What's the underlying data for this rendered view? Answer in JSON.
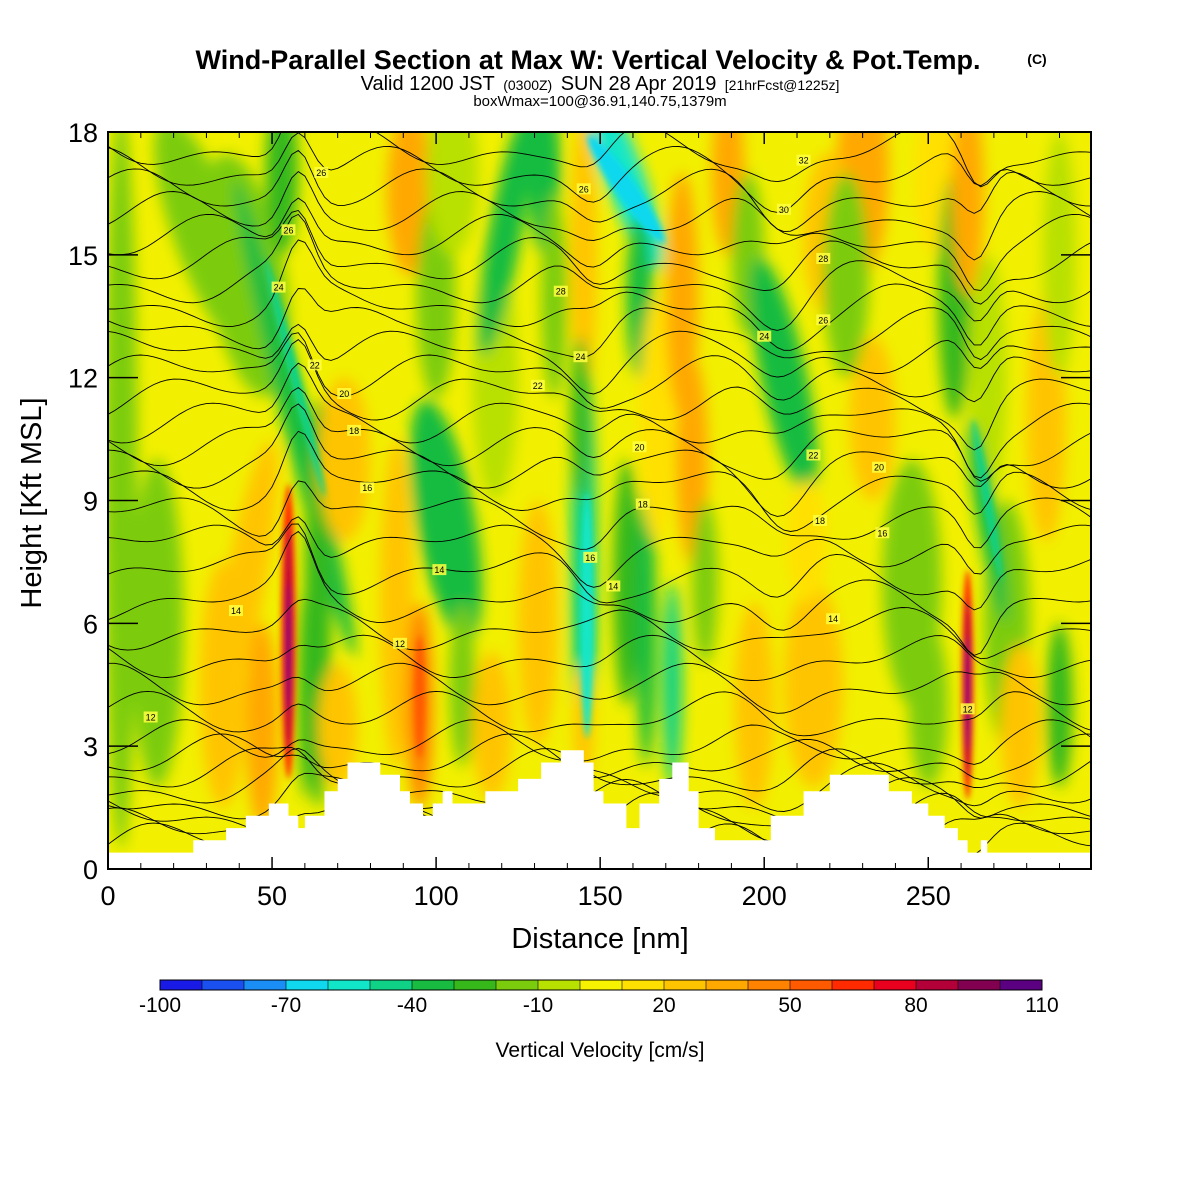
{
  "header": {
    "title_main": "Wind-Parallel Section at Max W: Vertical Velocity & Pot.Temp.",
    "title_copyright": "(C)",
    "valid_prefix": "Valid 1200 JST",
    "valid_utc": "(0300Z)",
    "valid_date": "SUN 28 Apr 2019",
    "valid_fcst": "[21hrFcst@1225z]",
    "box_info": "boxWmax=100@36.91,140.75,1379m"
  },
  "chart_data": {
    "type": "heatmap",
    "title": "Wind-Parallel Section at Max W: Vertical Velocity & Pot.Temp.",
    "xlabel": "Distance [nm]",
    "ylabel": "Height [Kft MSL]",
    "xlim": [
      0,
      300
    ],
    "ylim": [
      0,
      18
    ],
    "x_ticks": [
      0,
      50,
      100,
      150,
      200,
      250
    ],
    "y_ticks": [
      0,
      3,
      6,
      9,
      12,
      15,
      18
    ],
    "x_tick_labels": [
      "0",
      "50",
      "100",
      "150",
      "200",
      "250"
    ],
    "y_tick_labels": [
      "0",
      "3",
      "6",
      "9",
      "12",
      "15",
      "18"
    ],
    "colorbar": {
      "label": "Vertical Velocity [cm/s]",
      "tick_labels": [
        "-100",
        "-70",
        "-40",
        "-10",
        "20",
        "50",
        "80",
        "110"
      ],
      "tick_values": [
        -100,
        -70,
        -40,
        -10,
        20,
        50,
        80,
        110
      ],
      "colors": [
        "#1a1ae6",
        "#1a4ff0",
        "#1a8ef5",
        "#10d8ee",
        "#12e6c8",
        "#10d286",
        "#18bc40",
        "#36b81a",
        "#7ccc0e",
        "#b8e000",
        "#f6f200",
        "#ffe000",
        "#ffc400",
        "#ffa800",
        "#ff8200",
        "#ff5a00",
        "#ff2a00",
        "#e8001e",
        "#b40038",
        "#820050",
        "#5a0080"
      ]
    },
    "background_color": "#f2f000",
    "terrain_kft": [
      [
        0,
        0.4
      ],
      [
        26,
        0.4
      ],
      [
        26,
        0.7
      ],
      [
        36,
        0.7
      ],
      [
        36,
        1.0
      ],
      [
        42,
        1.0
      ],
      [
        42,
        1.3
      ],
      [
        49,
        1.3
      ],
      [
        49,
        1.6
      ],
      [
        55,
        1.6
      ],
      [
        55,
        1.3
      ],
      [
        58,
        1.3
      ],
      [
        58,
        1.0
      ],
      [
        60,
        1.0
      ],
      [
        60,
        1.3
      ],
      [
        66,
        1.3
      ],
      [
        66,
        1.9
      ],
      [
        70,
        1.9
      ],
      [
        70,
        2.2
      ],
      [
        73,
        2.2
      ],
      [
        73,
        2.6
      ],
      [
        83,
        2.6
      ],
      [
        83,
        2.3
      ],
      [
        89,
        2.3
      ],
      [
        89,
        1.9
      ],
      [
        92,
        1.9
      ],
      [
        92,
        1.6
      ],
      [
        96,
        1.6
      ],
      [
        96,
        1.3
      ],
      [
        99,
        1.3
      ],
      [
        99,
        1.6
      ],
      [
        102,
        1.6
      ],
      [
        102,
        1.9
      ],
      [
        105,
        1.9
      ],
      [
        105,
        1.6
      ],
      [
        115,
        1.6
      ],
      [
        115,
        1.9
      ],
      [
        125,
        1.9
      ],
      [
        125,
        2.2
      ],
      [
        132,
        2.2
      ],
      [
        132,
        2.6
      ],
      [
        138,
        2.6
      ],
      [
        138,
        2.9
      ],
      [
        145,
        2.9
      ],
      [
        145,
        2.6
      ],
      [
        148,
        2.6
      ],
      [
        148,
        1.9
      ],
      [
        151,
        1.9
      ],
      [
        151,
        1.6
      ],
      [
        158,
        1.6
      ],
      [
        158,
        1.0
      ],
      [
        162,
        1.0
      ],
      [
        162,
        1.6
      ],
      [
        168,
        1.6
      ],
      [
        168,
        2.2
      ],
      [
        172,
        2.2
      ],
      [
        172,
        2.6
      ],
      [
        177,
        2.6
      ],
      [
        177,
        1.9
      ],
      [
        180,
        1.9
      ],
      [
        180,
        1.0
      ],
      [
        185,
        1.0
      ],
      [
        185,
        0.7
      ],
      [
        202,
        0.7
      ],
      [
        202,
        1.3
      ],
      [
        212,
        1.3
      ],
      [
        212,
        1.9
      ],
      [
        220,
        1.9
      ],
      [
        220,
        2.3
      ],
      [
        238,
        2.3
      ],
      [
        238,
        1.9
      ],
      [
        245,
        1.9
      ],
      [
        245,
        1.6
      ],
      [
        250,
        1.6
      ],
      [
        250,
        1.3
      ],
      [
        255,
        1.3
      ],
      [
        255,
        1.0
      ],
      [
        259,
        1.0
      ],
      [
        259,
        0.7
      ],
      [
        262,
        0.7
      ],
      [
        262,
        0.4
      ],
      [
        266,
        0.4
      ],
      [
        266,
        0.7
      ],
      [
        268,
        0.7
      ],
      [
        268,
        0.4
      ],
      [
        300,
        0.4
      ]
    ],
    "vertical_velocity_features": [
      {
        "x": 55,
        "y": 5.5,
        "w_cm_s": 100
      },
      {
        "x": 262,
        "y": 4.5,
        "w_cm_s": 100
      },
      {
        "x": 145,
        "y": 6,
        "w_cm_s": -60
      },
      {
        "x": 160,
        "y": 16.5,
        "w_cm_s": -65
      },
      {
        "x": 95,
        "y": 4,
        "w_cm_s": 45
      }
    ],
    "theta_contour_labels": [
      {
        "text": "26",
        "x": 65,
        "y": 17.0
      },
      {
        "text": "26",
        "x": 55,
        "y": 15.6
      },
      {
        "text": "24",
        "x": 52,
        "y": 14.2
      },
      {
        "text": "22",
        "x": 63,
        "y": 12.3
      },
      {
        "text": "20",
        "x": 72,
        "y": 11.6
      },
      {
        "text": "18",
        "x": 75,
        "y": 10.7
      },
      {
        "text": "16",
        "x": 79,
        "y": 9.3
      },
      {
        "text": "14",
        "x": 101,
        "y": 7.3
      },
      {
        "text": "14",
        "x": 39,
        "y": 6.3
      },
      {
        "text": "12",
        "x": 89,
        "y": 5.5
      },
      {
        "text": "12",
        "x": 13,
        "y": 3.7
      },
      {
        "text": "26",
        "x": 145,
        "y": 16.6
      },
      {
        "text": "28",
        "x": 138,
        "y": 14.1
      },
      {
        "text": "24",
        "x": 144,
        "y": 12.5
      },
      {
        "text": "22",
        "x": 131,
        "y": 11.8
      },
      {
        "text": "20",
        "x": 162,
        "y": 10.3
      },
      {
        "text": "18",
        "x": 163,
        "y": 8.9
      },
      {
        "text": "16",
        "x": 147,
        "y": 7.6
      },
      {
        "text": "14",
        "x": 154,
        "y": 6.9
      },
      {
        "text": "32",
        "x": 212,
        "y": 17.3
      },
      {
        "text": "30",
        "x": 206,
        "y": 16.1
      },
      {
        "text": "28",
        "x": 218,
        "y": 14.9
      },
      {
        "text": "26",
        "x": 218,
        "y": 13.4
      },
      {
        "text": "24",
        "x": 200,
        "y": 13.0
      },
      {
        "text": "22",
        "x": 215,
        "y": 10.1
      },
      {
        "text": "20",
        "x": 235,
        "y": 9.8
      },
      {
        "text": "18",
        "x": 217,
        "y": 8.5
      },
      {
        "text": "16",
        "x": 236,
        "y": 8.2
      },
      {
        "text": "14",
        "x": 221,
        "y": 6.1
      },
      {
        "text": "12",
        "x": 262,
        "y": 3.9
      }
    ]
  }
}
